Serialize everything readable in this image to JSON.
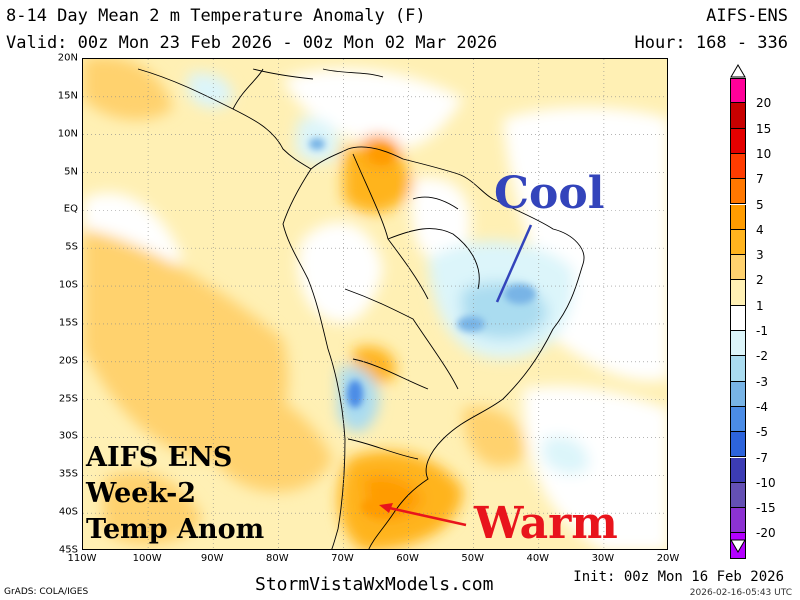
{
  "header": {
    "title": "8-14 Day Mean 2 m Temperature Anomaly (F)",
    "model": "AIFS-ENS",
    "valid": "Valid: 00z Mon 23 Feb 2026 - 00z Mon 02 Mar 2026",
    "hour": "Hour: 168 - 336"
  },
  "map": {
    "lat_labels": [
      "20N",
      "15N",
      "10N",
      "5N",
      "EQ",
      "5S",
      "10S",
      "15S",
      "20S",
      "25S",
      "30S",
      "35S",
      "40S",
      "45S"
    ],
    "lon_labels": [
      "110W",
      "100W",
      "90W",
      "80W",
      "70W",
      "60W",
      "50W",
      "40W",
      "30W",
      "20W"
    ],
    "lat_range": [
      20,
      -45
    ],
    "lon_range": [
      -110,
      -20
    ],
    "grid": true
  },
  "colorbar": {
    "levels": [
      "20",
      "15",
      "10",
      "7",
      "5",
      "4",
      "3",
      "2",
      "1",
      "-1",
      "-2",
      "-3",
      "-4",
      "-5",
      "-7",
      "-10",
      "-15",
      "-20"
    ],
    "colors": [
      "#ff0099",
      "#c80000",
      "#e40000",
      "#ff3c00",
      "#ff7800",
      "#ff9c00",
      "#ffb41e",
      "#ffd26e",
      "#fff0b4",
      "#ffffff",
      "#dcf5fa",
      "#aadcf0",
      "#78b4e6",
      "#4b8ce6",
      "#2d64dc",
      "#3c3cb4",
      "#6450b4",
      "#8c32d2",
      "#b400ff"
    ],
    "top_arrow": "white",
    "bottom_arrow": "white"
  },
  "overlay": {
    "badge_line1": "AIFS ENS",
    "badge_line2": "Week-2",
    "badge_line3": "Temp Anom",
    "cool_label": "Cool",
    "warm_label": "Warm",
    "cool_color": "#3344bb",
    "warm_color": "#e8141c"
  },
  "footer": {
    "site": "StormVistaWxModels.com",
    "init": "Init: 00z Mon 16 Feb 2026",
    "grads": "GrADS: COLA/IGES",
    "timestamp": "2026-02-16-05:43 UTC"
  }
}
